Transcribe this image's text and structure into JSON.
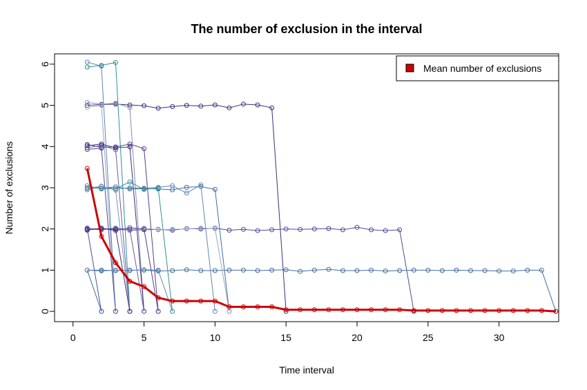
{
  "chart_data": {
    "type": "line",
    "title": "The number of exclusion in the interval",
    "xlabel": "Time interval",
    "ylabel": "Number of exclusions",
    "xlim": [
      -1.3,
      34.2
    ],
    "ylim": [
      -0.25,
      6.25
    ],
    "x_ticks": [
      0,
      5,
      10,
      15,
      20,
      25,
      30
    ],
    "y_ticks": [
      0,
      1,
      2,
      3,
      4,
      5,
      6
    ],
    "grid": false,
    "legend": {
      "position": "top-right",
      "entries": [
        {
          "label": "Mean number of exclusions",
          "color": "#cc0000"
        }
      ]
    },
    "series_colors": [
      "#3b2d7a",
      "#4a4a9a",
      "#3f6e9e",
      "#5f86b0",
      "#2f8f96",
      "#7f8fae",
      "#9aa6bf",
      "#553d8c",
      "#6b5aa3"
    ],
    "mean_color": "#cc0000",
    "mean_series": {
      "name": "Mean number of exclusions",
      "x": [
        1,
        2,
        3,
        4,
        5,
        6,
        7,
        8,
        9,
        10,
        11,
        12,
        13,
        14,
        15,
        16,
        17,
        18,
        19,
        20,
        21,
        22,
        23,
        24,
        25,
        26,
        27,
        28,
        29,
        30,
        31,
        32,
        33,
        34
      ],
      "y": [
        3.47,
        1.82,
        1.18,
        0.73,
        0.6,
        0.33,
        0.25,
        0.25,
        0.25,
        0.25,
        0.11,
        0.11,
        0.11,
        0.11,
        0.04,
        0.04,
        0.04,
        0.04,
        0.04,
        0.04,
        0.04,
        0.04,
        0.04,
        0.02,
        0.02,
        0.02,
        0.02,
        0.02,
        0.02,
        0.02,
        0.02,
        0.02,
        0.02,
        0.0
      ]
    },
    "series": [
      {
        "x": [
          1,
          2,
          3,
          4,
          5,
          6,
          7,
          8,
          9,
          10,
          11,
          12,
          13,
          14,
          15
        ],
        "y": [
          5.0,
          5.02,
          5.03,
          5.01,
          4.99,
          4.93,
          4.97,
          5.0,
          4.98,
          5.01,
          4.94,
          5.03,
          5.01,
          4.94,
          0
        ]
      },
      {
        "x": [
          1,
          2,
          3,
          4,
          5,
          6,
          7,
          8,
          9,
          10,
          11,
          12,
          13,
          14,
          15,
          16,
          17,
          18,
          19,
          20,
          21,
          22,
          23,
          24
        ],
        "y": [
          2.0,
          1.99,
          2.0,
          1.97,
          1.98,
          1.99,
          1.97,
          2.01,
          2.0,
          2.02,
          1.97,
          1.99,
          1.96,
          1.98,
          2.0,
          1.99,
          2.0,
          2.01,
          1.98,
          2.04,
          1.98,
          1.96,
          1.98,
          0
        ]
      },
      {
        "x": [
          1,
          2,
          3,
          4,
          5,
          6,
          7,
          8,
          9,
          10,
          11,
          12,
          13,
          14,
          15,
          16,
          17,
          18,
          19,
          20,
          21,
          22,
          23,
          24,
          25,
          26,
          27,
          28,
          29,
          30,
          31,
          32,
          33,
          34
        ],
        "y": [
          1.0,
          1.0,
          0.99,
          1.0,
          1.0,
          0.98,
          0.99,
          1.01,
          0.99,
          0.99,
          1.0,
          1.0,
          0.99,
          1.0,
          1.01,
          0.97,
          1.0,
          1.02,
          0.99,
          0.99,
          1.0,
          0.98,
          0.99,
          1.0,
          1.0,
          0.99,
          1.0,
          0.99,
          0.99,
          0.98,
          0.98,
          1.0,
          1.0,
          0
        ]
      },
      {
        "x": [
          1,
          2,
          3
        ],
        "y": [
          6.05,
          5.95,
          0
        ]
      },
      {
        "x": [
          1,
          2,
          3,
          4
        ],
        "y": [
          5.93,
          5.97,
          6.04,
          0
        ]
      },
      {
        "x": [
          1,
          2,
          3,
          4,
          5
        ],
        "y": [
          5.07,
          5.03,
          5.05,
          4.95,
          0
        ]
      },
      {
        "x": [
          1,
          2,
          3
        ],
        "y": [
          4.95,
          5.0,
          0
        ]
      },
      {
        "x": [
          1,
          2,
          3,
          4,
          5,
          6
        ],
        "y": [
          4.05,
          3.98,
          3.99,
          4.06,
          3.95,
          0
        ]
      },
      {
        "x": [
          1,
          2,
          3,
          4
        ],
        "y": [
          3.97,
          4.03,
          3.92,
          0
        ]
      },
      {
        "x": [
          1,
          2,
          3,
          4,
          5
        ],
        "y": [
          4.02,
          4.06,
          3.97,
          3.99,
          0
        ]
      },
      {
        "x": [
          1,
          2,
          3
        ],
        "y": [
          3.93,
          3.96,
          0
        ]
      },
      {
        "x": [
          1,
          2,
          3,
          4,
          5,
          6,
          7,
          8,
          9,
          10,
          11
        ],
        "y": [
          3.0,
          2.99,
          3.02,
          2.97,
          2.98,
          2.97,
          2.95,
          3.01,
          3.03,
          2.96,
          0
        ]
      },
      {
        "x": [
          1,
          2,
          3,
          4,
          5,
          6,
          7,
          8,
          9,
          10
        ],
        "y": [
          2.95,
          3.03,
          2.97,
          3.0,
          2.99,
          3.01,
          3.05,
          2.87,
          3.07,
          0
        ]
      },
      {
        "x": [
          1,
          2,
          3,
          4,
          5,
          6,
          7
        ],
        "y": [
          3.05,
          2.97,
          2.98,
          3.14,
          2.96,
          2.99,
          0
        ]
      },
      {
        "x": [
          1,
          2,
          3,
          4
        ],
        "y": [
          2.98,
          3.04,
          2.94,
          0
        ]
      },
      {
        "x": [
          1,
          2,
          3,
          4,
          5,
          6,
          7,
          8,
          9,
          10,
          11
        ],
        "y": [
          2.03,
          1.99,
          2.01,
          1.98,
          2.02,
          1.98,
          1.99,
          2.0,
          2.02,
          2.01,
          0
        ]
      },
      {
        "x": [
          1,
          2,
          3,
          4,
          5,
          6
        ],
        "y": [
          1.97,
          2.02,
          1.96,
          2.03,
          2.0,
          0
        ]
      },
      {
        "x": [
          1,
          2,
          3,
          4,
          5
        ],
        "y": [
          2.0,
          1.98,
          2.02,
          1.99,
          0
        ]
      },
      {
        "x": [
          1,
          2,
          3,
          4
        ],
        "y": [
          1.98,
          2.01,
          1.99,
          0
        ]
      },
      {
        "x": [
          1,
          2
        ],
        "y": [
          2.01,
          0
        ]
      },
      {
        "x": [
          1,
          2
        ],
        "y": [
          1.0,
          0
        ]
      },
      {
        "x": [
          1,
          2,
          3,
          4,
          5,
          6,
          7
        ],
        "y": [
          1.0,
          0.98,
          1.0,
          0.99,
          1.01,
          1.0,
          0
        ]
      }
    ]
  }
}
